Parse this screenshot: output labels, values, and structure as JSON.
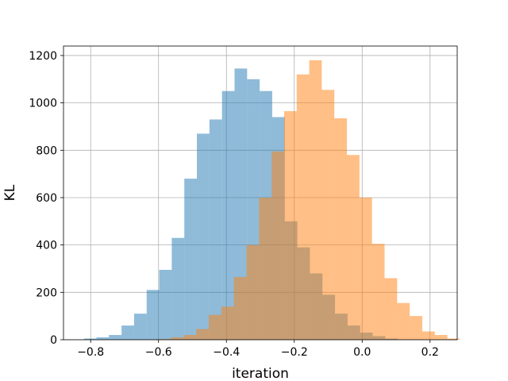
{
  "chart_data": {
    "type": "bar",
    "title": "",
    "xlabel": "iteration",
    "ylabel": "KL",
    "xlim": [
      -0.88,
      0.28
    ],
    "ylim": [
      0,
      1240
    ],
    "xticks": [
      -0.8,
      -0.6,
      -0.4,
      -0.2,
      0.0,
      0.2
    ],
    "xtick_labels": [
      "−0.8",
      "−0.6",
      "−0.4",
      "−0.2",
      "0.0",
      "0.2"
    ],
    "yticks": [
      0,
      200,
      400,
      600,
      800,
      1000,
      1200
    ],
    "ytick_labels": [
      "0",
      "200",
      "400",
      "600",
      "800",
      "1000",
      "1200"
    ],
    "grid": true,
    "legend": "none",
    "series": [
      {
        "color": "#1f77b4",
        "opacity": 0.5,
        "bin_start": -0.82,
        "bin_width": 0.037,
        "values": [
          5,
          10,
          20,
          60,
          110,
          210,
          295,
          430,
          680,
          870,
          930,
          1050,
          1145,
          1100,
          1050,
          940,
          500,
          390,
          280,
          190,
          110,
          60,
          30,
          15,
          5
        ]
      },
      {
        "color": "#ff7f0e",
        "opacity": 0.5,
        "bin_start": -0.6,
        "bin_width": 0.037,
        "values": [
          3,
          10,
          20,
          45,
          105,
          140,
          265,
          400,
          600,
          795,
          965,
          1120,
          1180,
          1055,
          935,
          780,
          600,
          405,
          260,
          155,
          100,
          35,
          20,
          5
        ]
      }
    ]
  }
}
